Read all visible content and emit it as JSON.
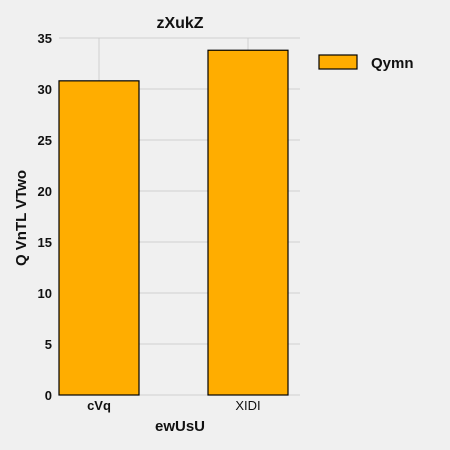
{
  "colors": {
    "background": "#f0f0f0",
    "bar_fill": "#ffad00",
    "bar_edge": "#000000",
    "grid": "#cfcfcf"
  },
  "chart_data": {
    "type": "bar",
    "title": "zXukZ",
    "xlabel": "ewUsU",
    "ylabel": "Q VnTL  VTwo",
    "categories": [
      "cVq",
      "XIDI"
    ],
    "category_label_bold": [
      true,
      false
    ],
    "series": [
      {
        "name": "Qymn",
        "values": [
          30.8,
          33.8
        ]
      }
    ],
    "ylim": [
      0,
      35
    ],
    "yticks": [
      0,
      5,
      10,
      15,
      20,
      25,
      30,
      35
    ],
    "grid": true,
    "legend_position": "top-right"
  }
}
